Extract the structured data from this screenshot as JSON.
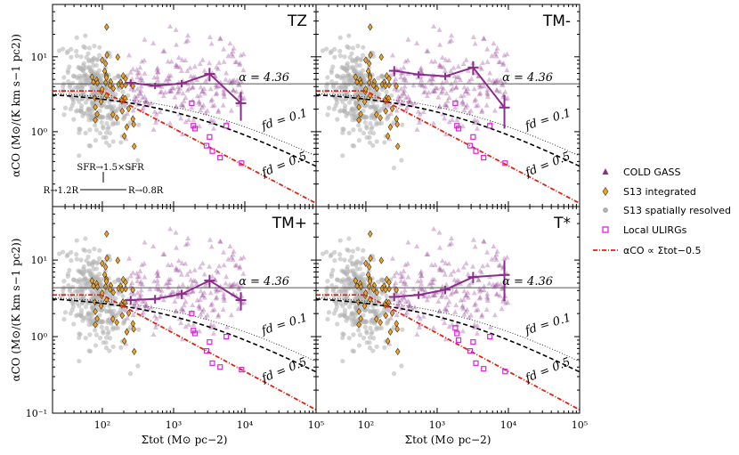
{
  "colors": {
    "cold_gass": "#8b2c8b",
    "s13_integrated": "#f0a020",
    "s13_resolved": "#b0b0b0",
    "ulirg": "#e020e0",
    "power_law": "#e02010",
    "alpha_line": "#555555"
  },
  "legend": {
    "items": [
      {
        "label": "COLD GASS",
        "marker": "triangle"
      },
      {
        "label": "S13 integrated",
        "marker": "diamond"
      },
      {
        "label": "S13 spatially resolved",
        "marker": "circle"
      },
      {
        "label": "Local ULIRGs",
        "marker": "square"
      },
      {
        "label": "αCO ∝ Σtot−0.5",
        "marker": "dashdot"
      }
    ]
  },
  "axes": {
    "x_title": "Σtot (M⊙ pc−2)",
    "y_title": "αCO (M⊙/(K km s−1 pc2))",
    "x_ticks": [
      "10²",
      "10³",
      "10⁴",
      "10⁵"
    ],
    "y_ticks": [
      "10⁻¹",
      "10⁰",
      "10¹"
    ],
    "alpha_label": "α = 4.36",
    "fd01": "fd = 0.1",
    "fd05": "fd = 0.5"
  },
  "arrows": {
    "up": "SFR→1.5×SFR",
    "left": "R→1.2R",
    "right": "R→0.8R"
  },
  "chart_data": [
    {
      "type": "scatter",
      "panel": "TZ",
      "xscale": "log",
      "yscale": "log",
      "xlim": [
        20,
        100000
      ],
      "ylim": [
        0.1,
        50
      ],
      "alpha_ref": 4.36,
      "binned": {
        "x": [
          250,
          550,
          1300,
          3200,
          8800
        ],
        "y": [
          4.5,
          4.1,
          4.4,
          5.9,
          2.4
        ],
        "yerr": [
          0.5,
          0.4,
          0.5,
          1.2,
          1.0
        ]
      },
      "ulirgs": {
        "x": [
          1800,
          1900,
          2000,
          2900,
          3200,
          3500,
          4500,
          5500,
          9000
        ],
        "y": [
          2.4,
          1.2,
          1.1,
          0.65,
          0.85,
          0.55,
          0.45,
          1.2,
          0.38
        ]
      }
    },
    {
      "type": "scatter",
      "panel": "TM-",
      "xscale": "log",
      "yscale": "log",
      "xlim": [
        20,
        100000
      ],
      "ylim": [
        0.1,
        50
      ],
      "alpha_ref": 4.36,
      "binned": {
        "x": [
          250,
          550,
          1300,
          3200,
          8800
        ],
        "y": [
          6.5,
          5.8,
          5.5,
          7.2,
          2.1
        ],
        "yerr": [
          1.0,
          0.6,
          0.6,
          1.5,
          1.0
        ]
      },
      "ulirgs": {
        "x": [
          1800,
          1900,
          2000,
          2900,
          3200,
          3500,
          4500,
          5500,
          9000
        ],
        "y": [
          2.4,
          1.2,
          1.1,
          0.65,
          0.85,
          0.55,
          0.45,
          1.2,
          0.38
        ]
      }
    },
    {
      "type": "scatter",
      "panel": "TM+",
      "xscale": "log",
      "yscale": "log",
      "xlim": [
        20,
        100000
      ],
      "ylim": [
        0.1,
        50
      ],
      "alpha_ref": 4.36,
      "binned": {
        "x": [
          250,
          550,
          1300,
          3200,
          8800
        ],
        "y": [
          3.0,
          3.1,
          3.6,
          5.4,
          3.0
        ],
        "yerr": [
          0.4,
          0.4,
          0.5,
          1.0,
          0.8
        ]
      },
      "ulirgs": {
        "x": [
          1800,
          1900,
          2000,
          2900,
          3200,
          3500,
          4500,
          5500,
          9000
        ],
        "y": [
          2.0,
          1.2,
          1.1,
          0.65,
          0.85,
          0.45,
          0.4,
          1.0,
          0.37
        ]
      }
    },
    {
      "type": "scatter",
      "panel": "T*",
      "xscale": "log",
      "yscale": "log",
      "xlim": [
        20,
        100000
      ],
      "ylim": [
        0.1,
        50
      ],
      "alpha_ref": 4.36,
      "binned": {
        "x": [
          250,
          550,
          1300,
          3200,
          8800
        ],
        "y": [
          3.3,
          3.5,
          4.1,
          6.0,
          6.4
        ],
        "yerr": [
          0.4,
          0.4,
          0.5,
          1.0,
          3.5
        ]
      },
      "ulirgs": {
        "x": [
          1800,
          1900,
          2000,
          2900,
          3200,
          3500,
          4500,
          5500,
          9000
        ],
        "y": [
          1.3,
          1.1,
          0.9,
          0.65,
          0.85,
          0.45,
          0.38,
          1.0,
          0.35
        ]
      }
    }
  ]
}
